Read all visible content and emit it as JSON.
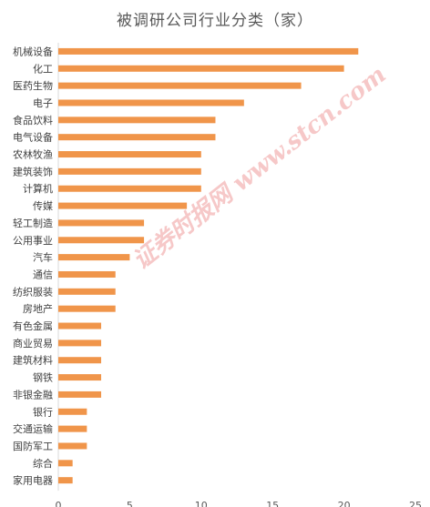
{
  "chart_data": {
    "type": "bar",
    "orientation": "horizontal",
    "title": "被调研公司行业分类（家）",
    "categories": [
      "机械设备",
      "化工",
      "医药生物",
      "电子",
      "食品饮料",
      "电气设备",
      "农林牧渔",
      "建筑装饰",
      "计算机",
      "传媒",
      "轻工制造",
      "公用事业",
      "汽车",
      "通信",
      "纺织服装",
      "房地产",
      "有色金属",
      "商业贸易",
      "建筑材料",
      "钢铁",
      "非银金融",
      "银行",
      "交通运输",
      "国防军工",
      "综合",
      "家用电器"
    ],
    "values": [
      21,
      20,
      17,
      13,
      11,
      11,
      10,
      10,
      10,
      9,
      6,
      6,
      5,
      4,
      4,
      4,
      3,
      3,
      3,
      3,
      3,
      2,
      2,
      2,
      1,
      1
    ],
    "xlim": [
      0,
      25
    ],
    "xticks": [
      0,
      5,
      10,
      15,
      20,
      25
    ],
    "bar_color": "#f0954a",
    "grid": false,
    "legend": "none"
  },
  "watermark": {
    "text": "证券时报网 www.stcn.com",
    "color": "#f4b6b6"
  }
}
